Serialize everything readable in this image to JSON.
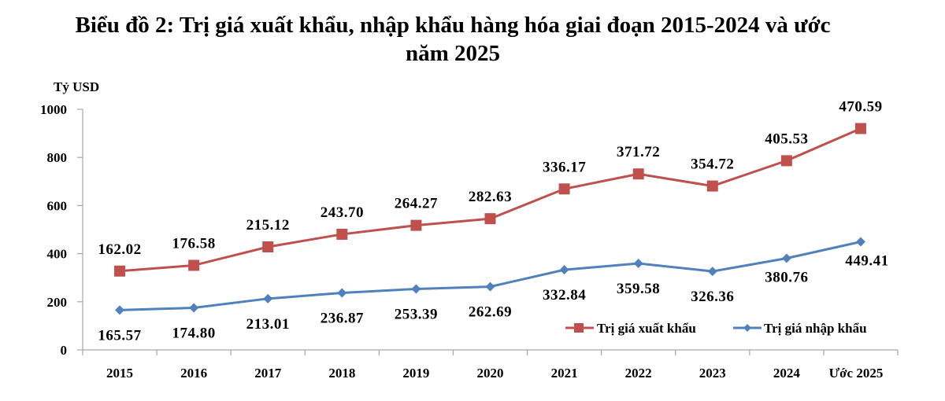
{
  "title_line1": "Biểu đồ 2: Trị giá xuất khẩu, nhập khẩu hàng hóa giai đoạn 2015-2024 và ước",
  "title_line2": "năm 2025",
  "chart_data": {
    "type": "line",
    "title": "Biểu đồ 2: Trị giá xuất khẩu, nhập khẩu hàng hóa giai đoạn 2015-2024 và ước năm 2025",
    "xlabel": "",
    "ylabel": "Tỷ USD",
    "ylim": [
      0,
      1000
    ],
    "yticks": [
      0,
      200,
      400,
      600,
      800,
      1000
    ],
    "grid": false,
    "legend_position": "bottom-right",
    "stacked": true,
    "categories": [
      "2015",
      "2016",
      "2017",
      "2018",
      "2019",
      "2020",
      "2021",
      "2022",
      "2023",
      "2024",
      "Ước 2025"
    ],
    "series": [
      {
        "name": "Trị giá xuất khẩu",
        "color": "#c0504d",
        "marker": "square",
        "values": [
          162.02,
          176.58,
          215.12,
          243.7,
          264.27,
          282.63,
          336.17,
          371.72,
          354.72,
          405.53,
          470.59
        ]
      },
      {
        "name": "Trị giá nhập khẩu",
        "color": "#4f81bd",
        "marker": "diamond",
        "values": [
          165.57,
          174.8,
          213.01,
          236.87,
          253.39,
          262.69,
          332.84,
          359.58,
          326.36,
          380.76,
          449.41
        ]
      }
    ]
  }
}
